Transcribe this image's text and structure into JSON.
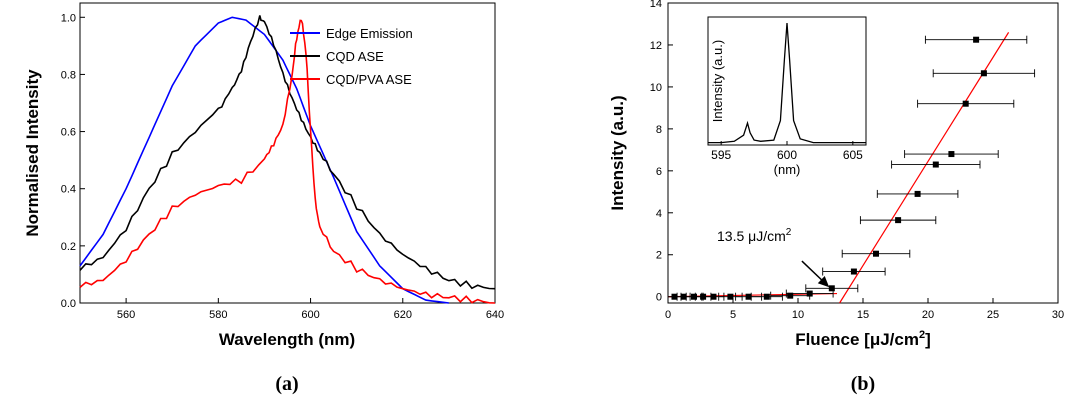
{
  "chart_data": [
    {
      "type": "line",
      "panel_label": "(a)",
      "xlabel": "Wavelength (nm)",
      "ylabel": "Normalised Intensity",
      "xlim": [
        550,
        640
      ],
      "ylim": [
        0,
        1.05
      ],
      "xticks": [
        560,
        580,
        600,
        620,
        640
      ],
      "yticks": [
        0.0,
        0.2,
        0.4,
        0.6,
        0.8,
        1.0
      ],
      "legend_position": "top-right",
      "series": [
        {
          "name": "Edge Emission",
          "color": "#0000ff",
          "x": [
            550,
            555,
            560,
            565,
            570,
            575,
            580,
            583,
            586,
            590,
            594,
            597,
            600,
            605,
            610,
            615,
            620,
            625,
            630
          ],
          "y": [
            0.13,
            0.24,
            0.4,
            0.58,
            0.76,
            0.9,
            0.98,
            1.0,
            0.99,
            0.94,
            0.85,
            0.75,
            0.62,
            0.44,
            0.25,
            0.13,
            0.05,
            0.01,
            0.0
          ]
        },
        {
          "name": "CQD ASE",
          "color": "#000000",
          "x": [
            550,
            555,
            560,
            565,
            570,
            575,
            580,
            583,
            585,
            587,
            589,
            590,
            592,
            594,
            596,
            598,
            600,
            602,
            605,
            610,
            615,
            620,
            625,
            630,
            635,
            640
          ],
          "y": [
            0.12,
            0.16,
            0.26,
            0.4,
            0.52,
            0.6,
            0.68,
            0.75,
            0.82,
            0.92,
            1.0,
            0.98,
            0.9,
            0.8,
            0.72,
            0.65,
            0.58,
            0.52,
            0.45,
            0.34,
            0.24,
            0.17,
            0.12,
            0.08,
            0.06,
            0.05
          ]
        },
        {
          "name": "CQD/PVA ASE",
          "color": "#ff0000",
          "x": [
            550,
            555,
            560,
            565,
            570,
            575,
            580,
            585,
            590,
            592,
            594,
            596,
            597,
            598,
            599,
            600,
            601,
            602,
            605,
            610,
            615,
            620,
            625,
            630,
            635,
            640
          ],
          "y": [
            0.06,
            0.08,
            0.15,
            0.24,
            0.33,
            0.38,
            0.41,
            0.43,
            0.5,
            0.55,
            0.62,
            0.8,
            0.93,
            1.0,
            0.88,
            0.6,
            0.36,
            0.26,
            0.18,
            0.12,
            0.08,
            0.05,
            0.03,
            0.02,
            0.01,
            0.0
          ]
        }
      ]
    },
    {
      "type": "scatter",
      "panel_label": "(b)",
      "xlabel": "Fluence [μJ/cm",
      "xlabel_sup": "2",
      "xlabel_tail": "]",
      "ylabel": "Intensity (a.u.)",
      "xlim": [
        0,
        30
      ],
      "ylim": [
        -0.3,
        14
      ],
      "xticks": [
        0,
        5,
        10,
        15,
        20,
        25,
        30
      ],
      "yticks": [
        0,
        2,
        4,
        6,
        8,
        10,
        12,
        14
      ],
      "points": {
        "color": "#000000",
        "x": [
          0.5,
          1.2,
          2.0,
          2.7,
          3.5,
          4.8,
          6.2,
          7.6,
          9.4,
          10.9,
          12.6,
          14.3,
          16.0,
          17.7,
          19.2,
          20.6,
          21.8,
          22.9,
          24.3,
          23.7
        ],
        "y": [
          0.0,
          0.0,
          0.0,
          0.0,
          0.0,
          0.0,
          0.0,
          0.0,
          0.05,
          0.15,
          0.4,
          1.2,
          2.05,
          3.65,
          4.9,
          6.3,
          6.8,
          9.2,
          10.65,
          12.25
        ],
        "xerr": [
          0.5,
          0.5,
          0.6,
          0.6,
          0.8,
          0.9,
          1.0,
          1.2,
          1.5,
          1.8,
          2.0,
          2.4,
          2.6,
          2.9,
          3.1,
          3.4,
          3.6,
          3.7,
          3.9,
          3.9
        ]
      },
      "fits": [
        {
          "color": "#ff0000",
          "x": [
            0,
            13.0
          ],
          "y": [
            0.0,
            0.15
          ]
        },
        {
          "color": "#ff0000",
          "x": [
            13.2,
            26.2
          ],
          "y": [
            -0.3,
            12.6
          ]
        }
      ],
      "annotation": {
        "text": "13.5 μJ/cm",
        "sup": "2",
        "arrow_to": [
          12.4,
          0.45
        ]
      },
      "inset": {
        "type": "line",
        "xlabel": "(nm)",
        "ylabel": "Intensity (a.u.)",
        "xlim": [
          594,
          606
        ],
        "ylim": [
          0,
          1.05
        ],
        "xticks": [
          595,
          600,
          605
        ],
        "x": [
          594,
          595,
          596,
          596.7,
          597.0,
          597.2,
          597.5,
          598,
          599,
          599.5,
          599.8,
          600.0,
          600.2,
          600.5,
          601,
          602,
          603,
          604,
          605,
          606
        ],
        "y": [
          0.02,
          0.02,
          0.03,
          0.08,
          0.18,
          0.1,
          0.04,
          0.03,
          0.04,
          0.2,
          0.7,
          1.0,
          0.7,
          0.2,
          0.05,
          0.02,
          0.02,
          0.02,
          0.02,
          0.02
        ]
      }
    }
  ]
}
